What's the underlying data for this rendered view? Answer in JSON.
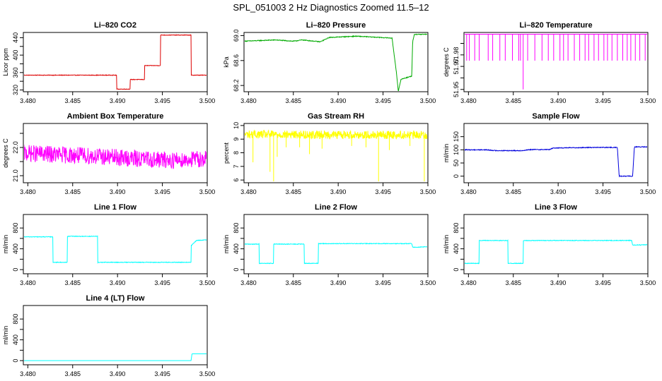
{
  "figure_title": "SPL_051003  2 Hz Diagnostics Zoomed 11.5–12",
  "chart_data": [
    {
      "type": "line",
      "title": "Li–820 CO2",
      "ylabel": "Licor ppm",
      "color": "#dd0000",
      "xlim": [
        3.4795,
        3.5
      ],
      "xticks": [
        3.48,
        3.485,
        3.49,
        3.495,
        3.5
      ],
      "xtick_labels": [
        "3.480",
        "3.485",
        "3.490",
        "3.495",
        "3.500"
      ],
      "ylim": [
        316,
        452
      ],
      "yticks": [
        320,
        340,
        360,
        380,
        400,
        420,
        440
      ],
      "ytick_labels": [
        "320",
        "",
        "360",
        "",
        "400",
        "",
        "440"
      ],
      "noise": 0.6,
      "spikes": [],
      "x": [
        3.4795,
        3.4899,
        3.4899,
        3.4914,
        3.4914,
        3.493,
        3.493,
        3.4948,
        3.4948,
        3.4982,
        3.4982,
        3.5
      ],
      "y": [
        354,
        354,
        322,
        322,
        344,
        344,
        376,
        376,
        446,
        446,
        354,
        354
      ]
    },
    {
      "type": "line",
      "title": "Li–820 Pressure",
      "ylabel": "kPa",
      "color": "#00aa00",
      "xlim": [
        3.4795,
        3.5
      ],
      "xticks": [
        3.48,
        3.485,
        3.49,
        3.495,
        3.5
      ],
      "xtick_labels": [
        "3.480",
        "3.485",
        "3.490",
        "3.495",
        "3.500"
      ],
      "ylim": [
        68.1,
        69.05
      ],
      "yticks": [
        68.2,
        68.6,
        69.0
      ],
      "ytick_labels": [
        "68.2",
        "68.6",
        "69.0"
      ],
      "noise": 0.006,
      "spikes": [],
      "x": [
        3.4795,
        3.483,
        3.485,
        3.486,
        3.488,
        3.489,
        3.492,
        3.496,
        3.4965,
        3.4967,
        3.497,
        3.4982,
        3.4983,
        3.4985,
        3.5
      ],
      "y": [
        68.91,
        68.93,
        68.91,
        68.93,
        68.9,
        68.97,
        68.99,
        68.96,
        68.4,
        68.1,
        68.3,
        68.35,
        68.9,
        69.02,
        69.02
      ]
    },
    {
      "type": "line",
      "title": "Li–820 Temperature",
      "ylabel": "degrees C",
      "color": "#ff00ff",
      "xlim": [
        3.4795,
        3.5
      ],
      "xticks": [
        3.48,
        3.485,
        3.49,
        3.495,
        3.5
      ],
      "xtick_labels": [
        "3.480",
        "3.485",
        "3.490",
        "3.495",
        "3.500"
      ],
      "ylim": [
        51.948,
        51.9995
      ],
      "yticks": [
        51.95,
        51.96,
        51.97,
        51.98,
        51.99
      ],
      "ytick_labels": [
        "51.95",
        "",
        "51.97",
        "51.98",
        ""
      ],
      "noise": 0,
      "spikes": [
        [
          3.4798,
          51.975
        ],
        [
          3.4801,
          51.975
        ],
        [
          3.4807,
          51.975
        ],
        [
          3.4812,
          51.975
        ],
        [
          3.4822,
          51.975
        ],
        [
          3.4827,
          51.975
        ],
        [
          3.4835,
          51.975
        ],
        [
          3.4841,
          51.975
        ],
        [
          3.4849,
          51.975
        ],
        [
          3.4856,
          51.975
        ],
        [
          3.4858,
          51.975
        ],
        [
          3.4861,
          51.95
        ],
        [
          3.4866,
          51.975
        ],
        [
          3.4874,
          51.975
        ],
        [
          3.4882,
          51.975
        ],
        [
          3.4889,
          51.975
        ],
        [
          3.4895,
          51.975
        ],
        [
          3.4902,
          51.975
        ],
        [
          3.4906,
          51.975
        ],
        [
          3.4911,
          51.975
        ],
        [
          3.4918,
          51.975
        ],
        [
          3.4924,
          51.975
        ],
        [
          3.493,
          51.975
        ],
        [
          3.4934,
          51.975
        ],
        [
          3.494,
          51.975
        ],
        [
          3.4945,
          51.975
        ],
        [
          3.4951,
          51.975
        ],
        [
          3.4955,
          51.975
        ],
        [
          3.496,
          51.975
        ],
        [
          3.4966,
          51.975
        ],
        [
          3.4972,
          51.975
        ],
        [
          3.4977,
          51.975
        ],
        [
          3.4981,
          51.975
        ],
        [
          3.4986,
          51.975
        ],
        [
          3.4991,
          51.975
        ],
        [
          3.4997,
          51.975
        ]
      ],
      "x": [
        3.4795,
        3.5
      ],
      "y": [
        51.998,
        51.998
      ]
    },
    {
      "type": "line",
      "title": "Ambient Box Temperature",
      "ylabel": "degrees C",
      "color": "#ff00ff",
      "xlim": [
        3.4795,
        3.5
      ],
      "xticks": [
        3.48,
        3.485,
        3.49,
        3.495,
        3.5
      ],
      "xtick_labels": [
        "3.480",
        "3.485",
        "3.490",
        "3.495",
        "3.500"
      ],
      "ylim": [
        20.75,
        22.85
      ],
      "yticks": [
        21.0,
        21.5,
        22.0,
        22.5
      ],
      "ytick_labels": [
        "21.0",
        "",
        "22.0",
        ""
      ],
      "noise": 0.3,
      "spikes": [],
      "x": [
        3.4795,
        3.483,
        3.487,
        3.492,
        3.496,
        3.5
      ],
      "y": [
        21.8,
        21.75,
        21.7,
        21.6,
        21.55,
        21.6
      ]
    },
    {
      "type": "line",
      "title": "Gas Stream RH",
      "ylabel": "percent",
      "color": "#ffff00",
      "xlim": [
        3.4795,
        3.5
      ],
      "xticks": [
        3.48,
        3.485,
        3.49,
        3.495,
        3.5
      ],
      "xtick_labels": [
        "3.480",
        "3.485",
        "3.490",
        "3.495",
        "3.500"
      ],
      "ylim": [
        5.8,
        10.15
      ],
      "yticks": [
        6,
        7,
        8,
        9,
        10
      ],
      "ytick_labels": [
        "6",
        "7",
        "8",
        "9",
        "10"
      ],
      "noise": 0.3,
      "spikes": [
        [
          3.4805,
          7.3
        ],
        [
          3.4824,
          6.6
        ],
        [
          3.4828,
          5.9
        ],
        [
          3.4832,
          7.7
        ],
        [
          3.4842,
          8.4
        ],
        [
          3.4857,
          8.4
        ],
        [
          3.4868,
          7.9
        ],
        [
          3.4882,
          8.3
        ],
        [
          3.4915,
          8.5
        ],
        [
          3.4931,
          8.4
        ],
        [
          3.4945,
          5.9
        ],
        [
          3.4957,
          8.2
        ],
        [
          3.498,
          8.5
        ],
        [
          3.4996,
          5.9
        ]
      ],
      "x": [
        3.4795,
        3.5
      ],
      "y": [
        9.35,
        9.3
      ]
    },
    {
      "type": "line",
      "title": "Sample Flow",
      "ylabel": "ml/min",
      "color": "#0000dd",
      "xlim": [
        3.4795,
        3.5
      ],
      "xticks": [
        3.48,
        3.485,
        3.49,
        3.495,
        3.5
      ],
      "xtick_labels": [
        "3.480",
        "3.485",
        "3.490",
        "3.495",
        "3.500"
      ],
      "ylim": [
        -25,
        200
      ],
      "yticks": [
        0,
        50,
        100,
        150
      ],
      "ytick_labels": [
        "0",
        "50",
        "100",
        "150"
      ],
      "noise": 1.5,
      "spikes": [],
      "x": [
        3.4795,
        3.482,
        3.483,
        3.486,
        3.487,
        3.489,
        3.4895,
        3.494,
        3.4966,
        3.4968,
        3.4983,
        3.4985,
        3.5
      ],
      "y": [
        100,
        100,
        97,
        97,
        101,
        101,
        107,
        109,
        109,
        0,
        0,
        111,
        111
      ]
    },
    {
      "type": "line",
      "title": "Line 1 Flow",
      "ylabel": "ml/min",
      "color": "#00ffff",
      "xlim": [
        3.4795,
        3.5
      ],
      "xticks": [
        3.48,
        3.485,
        3.49,
        3.495,
        3.5
      ],
      "xtick_labels": [
        "3.480",
        "3.485",
        "3.490",
        "3.495",
        "3.500"
      ],
      "ylim": [
        -80,
        1060
      ],
      "yticks": [
        0,
        200,
        400,
        600,
        800
      ],
      "ytick_labels": [
        "0",
        "",
        "400",
        "",
        "800"
      ],
      "noise": 6,
      "spikes": [],
      "x": [
        3.4795,
        3.4828,
        3.4828,
        3.4844,
        3.4844,
        3.4878,
        3.4878,
        3.4982,
        3.4982,
        3.4988,
        3.5
      ],
      "y": [
        630,
        630,
        140,
        140,
        640,
        640,
        140,
        140,
        460,
        560,
        570
      ]
    },
    {
      "type": "line",
      "title": "Line 2 Flow",
      "ylabel": "ml/min",
      "color": "#00ffff",
      "xlim": [
        3.4795,
        3.5
      ],
      "xticks": [
        3.48,
        3.485,
        3.49,
        3.495,
        3.5
      ],
      "xtick_labels": [
        "3.480",
        "3.485",
        "3.490",
        "3.495",
        "3.500"
      ],
      "ylim": [
        -80,
        1060
      ],
      "yticks": [
        0,
        200,
        400,
        600,
        800
      ],
      "ytick_labels": [
        "0",
        "",
        "400",
        "",
        "800"
      ],
      "noise": 6,
      "spikes": [],
      "x": [
        3.4795,
        3.4812,
        3.4812,
        3.4828,
        3.4828,
        3.4862,
        3.4862,
        3.4878,
        3.4878,
        3.4982,
        3.4983,
        3.5
      ],
      "y": [
        490,
        490,
        120,
        120,
        490,
        490,
        120,
        120,
        500,
        500,
        430,
        440
      ]
    },
    {
      "type": "line",
      "title": "Line 3 Flow",
      "ylabel": "ml/min",
      "color": "#00ffff",
      "xlim": [
        3.4795,
        3.5
      ],
      "xticks": [
        3.48,
        3.485,
        3.49,
        3.495,
        3.5
      ],
      "xtick_labels": [
        "3.480",
        "3.485",
        "3.490",
        "3.495",
        "3.500"
      ],
      "ylim": [
        -80,
        1060
      ],
      "yticks": [
        0,
        200,
        400,
        600,
        800
      ],
      "ytick_labels": [
        "0",
        "",
        "400",
        "",
        "800"
      ],
      "noise": 6,
      "spikes": [],
      "x": [
        3.4795,
        3.4812,
        3.4812,
        3.4844,
        3.4844,
        3.4861,
        3.4861,
        3.4982,
        3.4983,
        3.5
      ],
      "y": [
        120,
        120,
        560,
        560,
        120,
        120,
        560,
        560,
        470,
        480
      ]
    },
    {
      "type": "line",
      "title": "Line 4 (LT) Flow",
      "ylabel": "ml/min",
      "color": "#00ffff",
      "xlim": [
        3.4795,
        3.5
      ],
      "xticks": [
        3.48,
        3.485,
        3.49,
        3.495,
        3.5
      ],
      "xtick_labels": [
        "3.480",
        "3.485",
        "3.490",
        "3.495",
        "3.500"
      ],
      "ylim": [
        -80,
        1060
      ],
      "yticks": [
        0,
        200,
        400,
        600,
        800
      ],
      "ytick_labels": [
        "0",
        "",
        "400",
        "",
        "800"
      ],
      "noise": 0,
      "spikes": [],
      "x": [
        3.4795,
        3.4982,
        3.4983,
        3.5
      ],
      "y": [
        0,
        0,
        130,
        130
      ]
    }
  ]
}
